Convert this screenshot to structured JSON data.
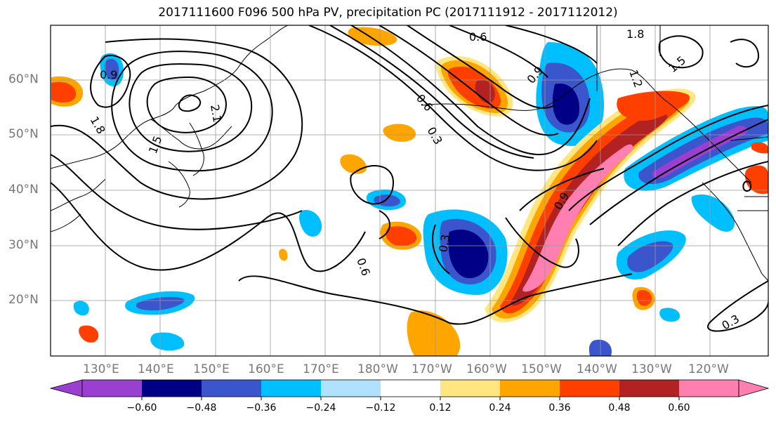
{
  "title": "2017111600 F096 500 hPa PV, precipitation PC (2017111912 - 2017112012)",
  "lat_labels": [
    "60°N",
    "50°N",
    "40°N",
    "30°N",
    "20°N"
  ],
  "lon_labels": [
    "130°E",
    "140°E",
    "150°E",
    "160°E",
    "170°E",
    "180°W",
    "170°W",
    "160°W",
    "150°W",
    "140°W",
    "130°W",
    "120°W"
  ],
  "colorbar": {
    "ticks": [
      "−0.60",
      "−0.48",
      "−0.36",
      "−0.24",
      "−0.12",
      "0.12",
      "0.24",
      "0.36",
      "0.48",
      "0.60"
    ],
    "colors": [
      "#9b3fd0",
      "#000086",
      "#3b55cc",
      "#00bfff",
      "#b0e2ff",
      "#ffffff",
      "#ffe680",
      "#ffa500",
      "#ff3f00",
      "#b22222",
      "#ff7fb0"
    ]
  },
  "contour_labels": [
    "0.9",
    "1.8",
    "2.1",
    "1.5",
    "0.6",
    "0.3",
    "1.2",
    "1.8",
    "1.5",
    "0.9",
    "0.6",
    "0.3",
    "0.3",
    "0.6",
    "0.9"
  ],
  "legend_colors": {
    "land": "#ffffff",
    "coast": "#000000",
    "grid": "#999999"
  }
}
